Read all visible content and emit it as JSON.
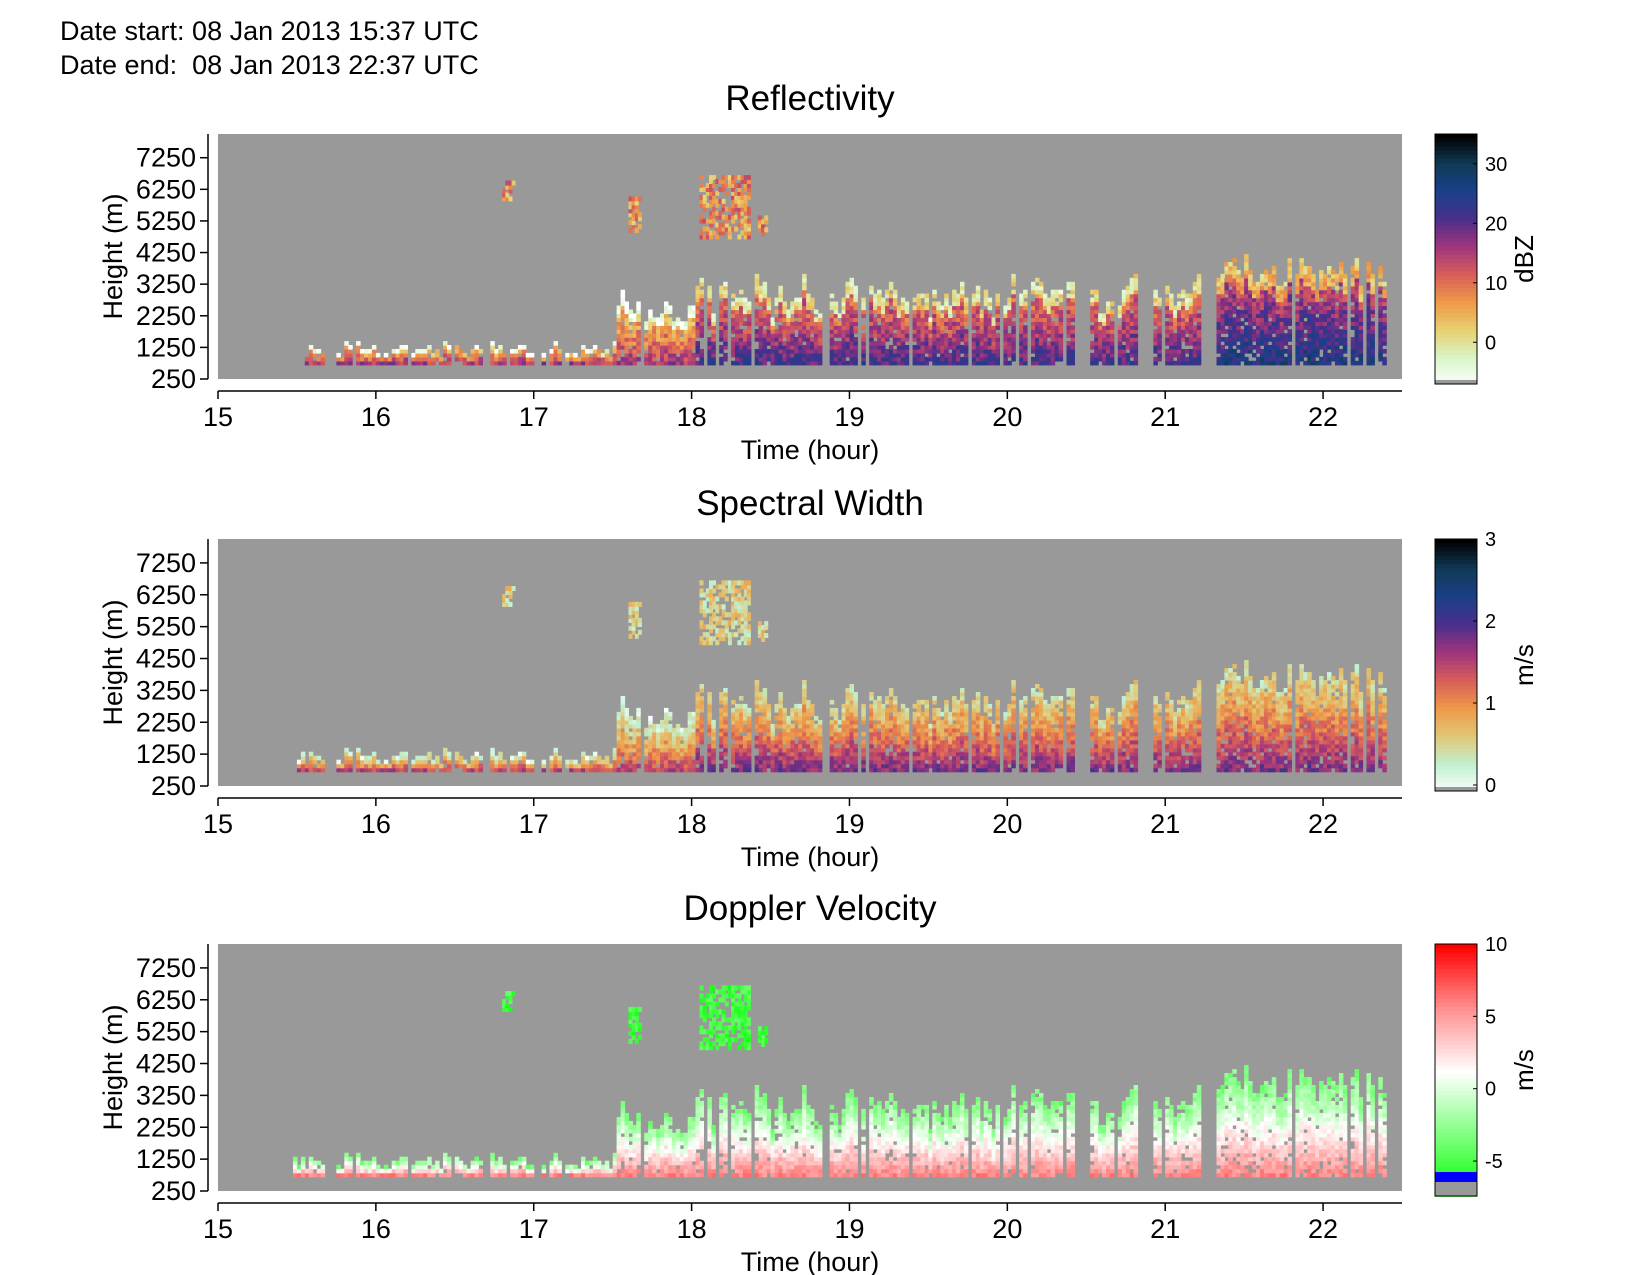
{
  "header": {
    "date_start": "Date start: 08 Jan 2013 15:37 UTC",
    "date_end": "Date end:  08 Jan 2013 22:37 UTC"
  },
  "colors": {
    "background_nodata": "#999999",
    "axis": "#000000",
    "velocity_below_min": "#0000ff"
  },
  "chart_data": [
    {
      "type": "heatmap",
      "title": "Reflectivity",
      "xlabel": "Time (hour)",
      "ylabel": "Height (m)",
      "xlim": [
        15,
        22.5
      ],
      "ylim": [
        250,
        8000
      ],
      "x_ticks": [
        15,
        16,
        17,
        18,
        19,
        20,
        21,
        22
      ],
      "y_ticks": [
        250,
        1250,
        2250,
        3250,
        4250,
        5250,
        6250,
        7250
      ],
      "colorbar": {
        "label": "dBZ",
        "range": [
          -6,
          35
        ],
        "ticks": [
          0,
          10,
          20,
          30
        ],
        "stops": [
          "#ffffff",
          "#d8f5c8",
          "#e8d070",
          "#ee9a48",
          "#d85e5a",
          "#a0357c",
          "#4a2f8c",
          "#1a3f88",
          "#0f3a55",
          "#000000"
        ]
      },
      "data_range_time": [
        15.55,
        22.38
      ],
      "blob_clusters": [
        {
          "x": [
            16.8,
            16.88
          ],
          "y": [
            5900,
            6500
          ]
        },
        {
          "x": [
            17.6,
            17.68
          ],
          "y": [
            4900,
            6000
          ]
        },
        {
          "x": [
            18.05,
            18.35
          ],
          "y": [
            4700,
            6600
          ]
        },
        {
          "x": [
            18.42,
            18.48
          ],
          "y": [
            4800,
            5400
          ]
        }
      ]
    },
    {
      "type": "heatmap",
      "title": "Spectral Width",
      "xlabel": "Time (hour)",
      "ylabel": "Height (m)",
      "xlim": [
        15,
        22.5
      ],
      "ylim": [
        250,
        8000
      ],
      "x_ticks": [
        15,
        16,
        17,
        18,
        19,
        20,
        21,
        22
      ],
      "y_ticks": [
        250,
        1250,
        2250,
        3250,
        4250,
        5250,
        6250,
        7250
      ],
      "colorbar": {
        "label": "m/s",
        "range": [
          0,
          3
        ],
        "ticks": [
          0,
          1,
          2,
          3
        ],
        "stops": [
          "#ffffff",
          "#c0f0d0",
          "#e0c878",
          "#ee9a48",
          "#d85e5a",
          "#a0357c",
          "#4a2f8c",
          "#1a3f88",
          "#0f3a55",
          "#000000"
        ]
      },
      "data_range_time": [
        15.5,
        22.38
      ]
    },
    {
      "type": "heatmap",
      "title": "Doppler Velocity",
      "xlabel": "Time (hour)",
      "ylabel": "Height (m)",
      "xlim": [
        15,
        22.5
      ],
      "ylim": [
        250,
        8000
      ],
      "x_ticks": [
        15,
        16,
        17,
        18,
        19,
        20,
        21,
        22
      ],
      "y_ticks": [
        250,
        1250,
        2250,
        3250,
        4250,
        5250,
        6250,
        7250
      ],
      "colorbar": {
        "label": "m/s",
        "range": [
          -7,
          10
        ],
        "ticks": [
          -5,
          0,
          5,
          10
        ],
        "stops": [
          "#00ff00",
          "#80ff80",
          "#ffffff",
          "#ff9090",
          "#ff0000"
        ]
      },
      "data_range_time": [
        15.45,
        22.38
      ]
    }
  ]
}
